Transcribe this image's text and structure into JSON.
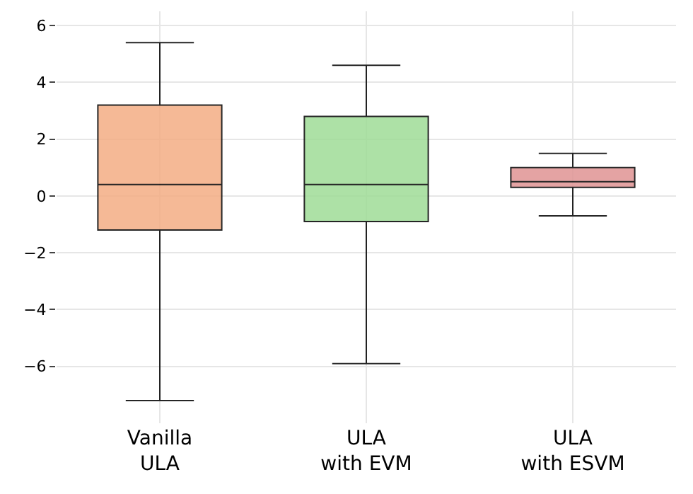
{
  "chart_data": {
    "type": "box",
    "categories": [
      "Vanilla\nULA",
      "ULA\nwith EVM",
      "ULA\nwith ESVM"
    ],
    "colors": [
      "#f4ad84",
      "#9fdc97",
      "#e09494"
    ],
    "boxes": [
      {
        "low": -7.2,
        "q1": -1.2,
        "median": 0.4,
        "q3": 3.2,
        "high": 5.4
      },
      {
        "low": -5.9,
        "q1": -0.9,
        "median": 0.4,
        "q3": 2.8,
        "high": 4.6
      },
      {
        "low": -0.7,
        "q1": 0.3,
        "median": 0.5,
        "q3": 1.0,
        "high": 1.5
      }
    ],
    "ylim": [
      -8,
      6.5
    ],
    "yticks": [
      -6,
      -4,
      -2,
      0,
      2,
      4,
      6
    ],
    "grid": true
  }
}
